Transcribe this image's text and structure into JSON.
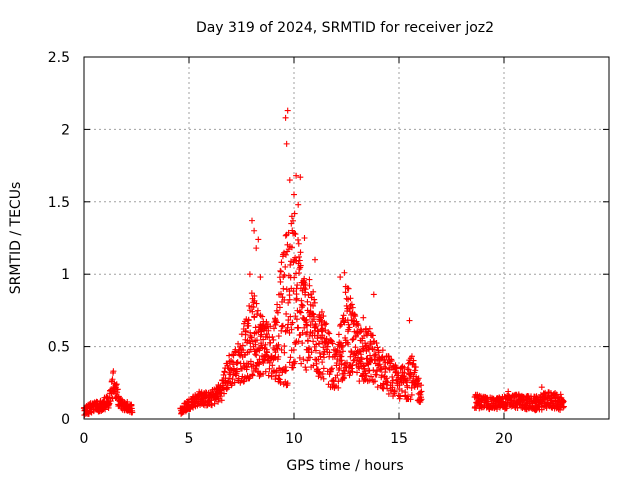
{
  "chart_data": {
    "type": "scatter",
    "title": "Day 319 of 2024, SRMTID for receiver joz2",
    "xlabel": "GPS time / hours",
    "ylabel": "SRMTID / TECUs",
    "xlim": [
      0,
      25
    ],
    "ylim": [
      0,
      2.5
    ],
    "x_ticks": [
      0,
      5,
      10,
      15,
      20
    ],
    "x_tick_labels": [
      "0",
      "5",
      "10",
      "15",
      "20"
    ],
    "y_ticks": [
      0,
      0.5,
      1,
      1.5,
      2,
      2.5
    ],
    "y_tick_labels": [
      "0",
      "0.5",
      "1",
      "1.5",
      "2",
      "2.5"
    ],
    "grid": true,
    "marker": "plus",
    "series": [
      {
        "name": "SRMTID",
        "color": "#ff0000",
        "envelope": [
          {
            "x": 0.0,
            "y": 0.05,
            "spread": 0.03
          },
          {
            "x": 0.4,
            "y": 0.08,
            "spread": 0.04
          },
          {
            "x": 0.8,
            "y": 0.09,
            "spread": 0.04
          },
          {
            "x": 1.2,
            "y": 0.12,
            "spread": 0.05
          },
          {
            "x": 1.4,
            "y": 0.24,
            "spread": 0.09
          },
          {
            "x": 1.7,
            "y": 0.1,
            "spread": 0.04
          },
          {
            "x": 2.3,
            "y": 0.07,
            "spread": 0.03
          },
          {
            "x": 4.6,
            "y": 0.05,
            "spread": 0.03
          },
          {
            "x": 5.0,
            "y": 0.1,
            "spread": 0.04
          },
          {
            "x": 5.5,
            "y": 0.14,
            "spread": 0.05
          },
          {
            "x": 6.0,
            "y": 0.13,
            "spread": 0.05
          },
          {
            "x": 6.5,
            "y": 0.18,
            "spread": 0.07
          },
          {
            "x": 6.9,
            "y": 0.32,
            "spread": 0.12
          },
          {
            "x": 7.4,
            "y": 0.38,
            "spread": 0.15
          },
          {
            "x": 8.0,
            "y": 0.55,
            "spread": 0.3
          },
          {
            "x": 8.5,
            "y": 0.5,
            "spread": 0.22
          },
          {
            "x": 9.0,
            "y": 0.45,
            "spread": 0.18
          },
          {
            "x": 9.6,
            "y": 0.7,
            "spread": 0.55
          },
          {
            "x": 10.0,
            "y": 0.85,
            "spread": 0.55
          },
          {
            "x": 10.5,
            "y": 0.65,
            "spread": 0.35
          },
          {
            "x": 11.0,
            "y": 0.55,
            "spread": 0.3
          },
          {
            "x": 11.5,
            "y": 0.45,
            "spread": 0.2
          },
          {
            "x": 12.0,
            "y": 0.3,
            "spread": 0.15
          },
          {
            "x": 12.5,
            "y": 0.6,
            "spread": 0.32
          },
          {
            "x": 13.0,
            "y": 0.45,
            "spread": 0.2
          },
          {
            "x": 13.5,
            "y": 0.42,
            "spread": 0.22
          },
          {
            "x": 14.0,
            "y": 0.35,
            "spread": 0.15
          },
          {
            "x": 14.5,
            "y": 0.3,
            "spread": 0.14
          },
          {
            "x": 15.0,
            "y": 0.22,
            "spread": 0.1
          },
          {
            "x": 15.5,
            "y": 0.3,
            "spread": 0.18
          },
          {
            "x": 16.0,
            "y": 0.18,
            "spread": 0.08
          },
          {
            "x": 18.6,
            "y": 0.12,
            "spread": 0.05
          },
          {
            "x": 19.5,
            "y": 0.1,
            "spread": 0.04
          },
          {
            "x": 20.5,
            "y": 0.12,
            "spread": 0.05
          },
          {
            "x": 21.5,
            "y": 0.1,
            "spread": 0.05
          },
          {
            "x": 22.2,
            "y": 0.13,
            "spread": 0.06
          },
          {
            "x": 22.8,
            "y": 0.1,
            "spread": 0.05
          }
        ],
        "segments": [
          [
            0.0,
            2.3
          ],
          [
            4.6,
            16.1
          ],
          [
            18.6,
            22.85
          ]
        ],
        "spikes": [
          {
            "x": 9.7,
            "y": 2.13
          },
          {
            "x": 9.6,
            "y": 2.08
          },
          {
            "x": 9.65,
            "y": 1.9
          },
          {
            "x": 10.1,
            "y": 1.68
          },
          {
            "x": 10.3,
            "y": 1.67
          },
          {
            "x": 9.8,
            "y": 1.65
          },
          {
            "x": 10.0,
            "y": 1.55
          },
          {
            "x": 10.2,
            "y": 1.48
          },
          {
            "x": 9.9,
            "y": 1.4
          },
          {
            "x": 8.0,
            "y": 1.37
          },
          {
            "x": 8.1,
            "y": 1.3
          },
          {
            "x": 8.3,
            "y": 1.24
          },
          {
            "x": 8.2,
            "y": 1.18
          },
          {
            "x": 10.5,
            "y": 1.25
          },
          {
            "x": 11.0,
            "y": 1.1
          },
          {
            "x": 7.9,
            "y": 1.0
          },
          {
            "x": 8.4,
            "y": 0.98
          },
          {
            "x": 12.4,
            "y": 1.01
          },
          {
            "x": 12.2,
            "y": 0.98
          },
          {
            "x": 12.6,
            "y": 0.9
          },
          {
            "x": 13.8,
            "y": 0.86
          },
          {
            "x": 15.5,
            "y": 0.68
          },
          {
            "x": 13.3,
            "y": 0.7
          },
          {
            "x": 1.4,
            "y": 0.33
          },
          {
            "x": 21.8,
            "y": 0.22
          },
          {
            "x": 20.2,
            "y": 0.19
          },
          {
            "x": 22.7,
            "y": 0.17
          }
        ]
      }
    ]
  }
}
